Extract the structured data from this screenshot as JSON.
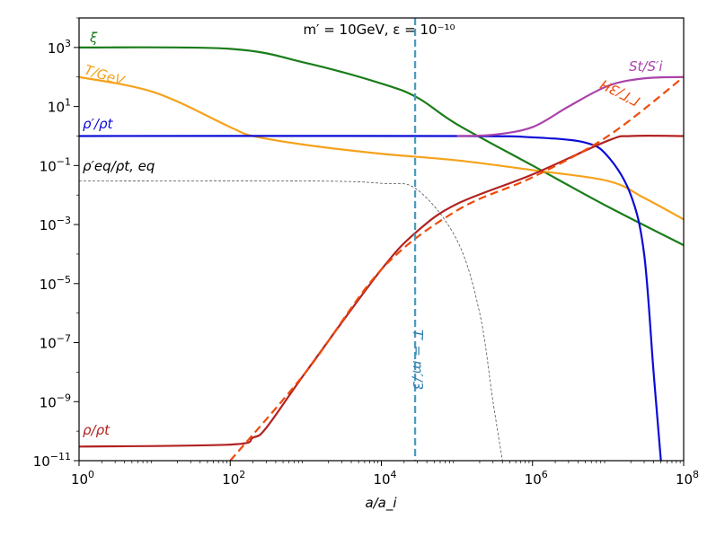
{
  "chart_data": {
    "type": "line",
    "title": "m′ = 10GeV, ε = 10⁻¹⁰",
    "xlabel": "a/a_i",
    "ylabel": "",
    "xscale": "log",
    "yscale": "log",
    "xlim": [
      1,
      100000000
    ],
    "ylim": [
      1e-11,
      10000
    ],
    "x_ticks": [
      {
        "value": 1,
        "base": "10",
        "exp": "0"
      },
      {
        "value": 100,
        "base": "10",
        "exp": "2"
      },
      {
        "value": 10000,
        "base": "10",
        "exp": "4"
      },
      {
        "value": 1000000,
        "base": "10",
        "exp": "6"
      },
      {
        "value": 100000000,
        "base": "10",
        "exp": "8"
      }
    ],
    "y_ticks": [
      {
        "value": 1000,
        "base": "10",
        "exp": "3"
      },
      {
        "value": 10,
        "base": "10",
        "exp": "1"
      },
      {
        "value": 0.1,
        "base": "10",
        "exp": "−1"
      },
      {
        "value": 0.001,
        "base": "10",
        "exp": "−3"
      },
      {
        "value": 1e-05,
        "base": "10",
        "exp": "−5"
      },
      {
        "value": 1e-07,
        "base": "10",
        "exp": "−7"
      },
      {
        "value": 1e-09,
        "base": "10",
        "exp": "−9"
      },
      {
        "value": 1e-11,
        "base": "10",
        "exp": "−11"
      }
    ],
    "vline": {
      "x": 28000,
      "label": "T′ = m′/3",
      "color": "#4a9bc0"
    },
    "series": [
      {
        "name": "ξ",
        "color": "#1a7d1a",
        "width": 2.2,
        "dash": "",
        "points": [
          [
            1,
            1000
          ],
          [
            100,
            900
          ],
          [
            1000,
            300
          ],
          [
            10000,
            60
          ],
          [
            30000,
            20
          ],
          [
            100000,
            2.5
          ],
          [
            1000000,
            0.1
          ],
          [
            10000000,
            0.004
          ],
          [
            100000000,
            0.0002
          ]
        ]
      },
      {
        "name": "T/GeV",
        "color": "#f5a21b",
        "width": 2.2,
        "dash": "",
        "points": [
          [
            1,
            100
          ],
          [
            10,
            30
          ],
          [
            100,
            2
          ],
          [
            200,
            1
          ],
          [
            1000,
            0.5
          ],
          [
            10000,
            0.25
          ],
          [
            100000,
            0.15
          ],
          [
            1000000,
            0.07
          ],
          [
            10000000,
            0.03
          ],
          [
            30000000,
            0.008
          ],
          [
            100000000,
            0.0015
          ]
        ]
      },
      {
        "name": "ρ′/ρ_t",
        "color": "#0b0bd8",
        "width": 2.2,
        "dash": "",
        "points": [
          [
            1,
            1
          ],
          [
            100000,
            1
          ],
          [
            1000000,
            0.9
          ],
          [
            5000000,
            0.6
          ],
          [
            10000000,
            0.2
          ],
          [
            20000000,
            0.01
          ],
          [
            30000000,
            0.0001
          ],
          [
            40000000,
            1e-08
          ],
          [
            50000000,
            1e-11
          ]
        ]
      },
      {
        "name": "ρ′_eq/ρ_t,eq",
        "color": "#555555",
        "width": 0.8,
        "dash": "3,2",
        "points": [
          [
            1,
            0.03
          ],
          [
            1000,
            0.03
          ],
          [
            10000,
            0.025
          ],
          [
            30000,
            0.015
          ],
          [
            100000,
            0.0003
          ],
          [
            200000,
            1e-06
          ],
          [
            300000,
            1e-09
          ],
          [
            400000,
            1e-11
          ]
        ]
      },
      {
        "name": "S_t/S′_i",
        "color": "#aa44aa",
        "width": 2.2,
        "dash": "",
        "points": [
          [
            100000,
            1
          ],
          [
            300000,
            1.1
          ],
          [
            1000000,
            2
          ],
          [
            3000000,
            10
          ],
          [
            10000000,
            50
          ],
          [
            30000000,
            90
          ],
          [
            100000000,
            100
          ]
        ]
      },
      {
        "name": "ρ/ρ_t",
        "color": "#b22222",
        "width": 2.2,
        "dash": "",
        "points": [
          [
            1,
            3e-11
          ],
          [
            100,
            3.5e-11
          ],
          [
            200,
            6e-11
          ],
          [
            300,
            1.3e-10
          ],
          [
            1000,
            1e-08
          ],
          [
            10000,
            3e-05
          ],
          [
            30000,
            0.0006
          ],
          [
            100000,
            0.005
          ],
          [
            1000000,
            0.05
          ],
          [
            10000000,
            0.7
          ],
          [
            20000000,
            1
          ],
          [
            100000000,
            1
          ]
        ]
      },
      {
        "name": "ΓʹΓ/3H",
        "color": "#f04a0a",
        "width": 2.2,
        "dash": "9,5",
        "points": [
          [
            100,
            1e-11
          ],
          [
            1000,
            1e-08
          ],
          [
            10000,
            3e-05
          ],
          [
            100000,
            0.003
          ],
          [
            1000000,
            0.04
          ],
          [
            10000000,
            1
          ],
          [
            100000000,
            100
          ]
        ]
      }
    ],
    "labels": {
      "xi": "ξ",
      "t_gev": "T/GeV",
      "rho_prime": "ρ′/ρt",
      "rho_eq": "ρ′eq/ρt, eq",
      "entropy": "St/S′i",
      "rho": "ρ/ρt",
      "gamma": "ΓʹΓ/3H"
    }
  }
}
